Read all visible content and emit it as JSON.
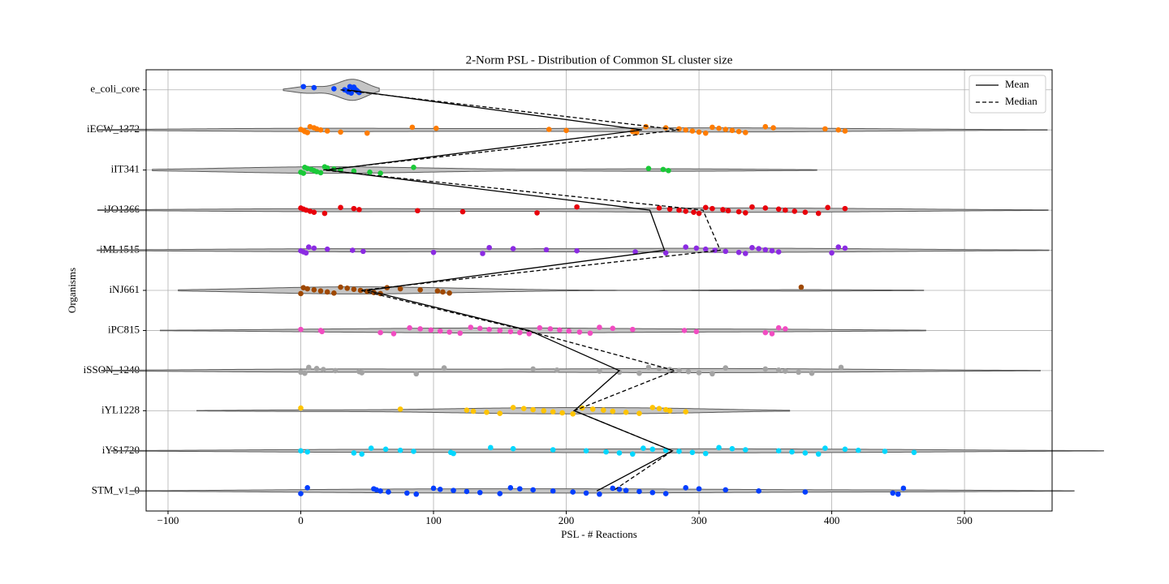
{
  "chart_data": {
    "type": "violin",
    "title": "2-Norm PSL - Distribution of Common SL cluster size",
    "xlabel": "PSL - # Reactions",
    "ylabel": "Organisms",
    "xlim": [
      -116.5,
      566
    ],
    "xticks": [
      {
        "value": -100,
        "label": "−100"
      },
      0,
      100,
      200,
      300,
      400,
      500
    ],
    "grid": true,
    "legend": "upper right",
    "series": [
      {
        "name": "e_coli_core",
        "color": "#023eff",
        "values": [
          2,
          10,
          25,
          33,
          35,
          36,
          38,
          40,
          40,
          41,
          42,
          43,
          44,
          37,
          39
        ]
      },
      {
        "name": "iECW_1372",
        "color": "#ff7c00",
        "values": [
          0,
          2,
          3,
          5,
          7,
          10,
          12,
          15,
          20,
          30,
          50,
          84,
          102,
          187,
          200,
          250,
          253,
          260,
          275,
          285,
          290,
          295,
          300,
          305,
          310,
          315,
          320,
          325,
          330,
          335,
          350,
          356,
          395,
          405,
          410
        ]
      },
      {
        "name": "iIT341",
        "color": "#1ac938",
        "values": [
          0,
          2,
          3,
          5,
          8,
          10,
          12,
          15,
          18,
          20,
          25,
          30,
          40,
          52,
          60,
          85,
          262,
          273,
          277
        ]
      },
      {
        "name": "iJO1366",
        "color": "#e8000b",
        "values": [
          0,
          2,
          4,
          7,
          10,
          18,
          30,
          40,
          44,
          88,
          122,
          178,
          208,
          270,
          278,
          285,
          290,
          296,
          300,
          305,
          310,
          318,
          322,
          330,
          335,
          340,
          350,
          360,
          365,
          372,
          380,
          390,
          397,
          410
        ]
      },
      {
        "name": "iML1515",
        "color": "#8b2be2",
        "values": [
          0,
          2,
          4,
          6,
          10,
          20,
          39,
          47,
          100,
          137,
          142,
          160,
          185,
          208,
          252,
          275,
          290,
          298,
          305,
          312,
          320,
          330,
          335,
          340,
          345,
          350,
          355,
          360,
          400,
          405,
          410
        ]
      },
      {
        "name": "iNJ661",
        "color": "#9f4800",
        "values": [
          0,
          2,
          5,
          10,
          15,
          20,
          25,
          30,
          35,
          40,
          45,
          50,
          55,
          60,
          65,
          75,
          90,
          103,
          107,
          112,
          377
        ]
      },
      {
        "name": "iPC815",
        "color": "#f14cc1",
        "values": [
          0,
          15,
          16,
          60,
          70,
          82,
          90,
          98,
          105,
          112,
          120,
          128,
          135,
          142,
          150,
          158,
          165,
          172,
          180,
          188,
          195,
          202,
          210,
          218,
          225,
          235,
          250,
          289,
          298,
          350,
          355,
          360,
          365
        ]
      },
      {
        "name": "iSSON_1240",
        "color": "#a3a3a3",
        "values": [
          0,
          3,
          6,
          12,
          17,
          26,
          44,
          46,
          87,
          108,
          175,
          193,
          225,
          240,
          255,
          262,
          270,
          278,
          285,
          292,
          300,
          310,
          320,
          350,
          360,
          365,
          375,
          385,
          407
        ]
      },
      {
        "name": "iYL1228",
        "color": "#ffc400",
        "values": [
          0,
          75,
          125,
          130,
          140,
          150,
          160,
          168,
          175,
          183,
          190,
          197,
          205,
          212,
          220,
          228,
          235,
          245,
          255,
          265,
          270,
          275,
          278,
          290
        ]
      },
      {
        "name": "iYS1720",
        "color": "#00d7ff",
        "values": [
          0,
          5,
          40,
          46,
          53,
          64,
          75,
          85,
          113,
          115,
          143,
          160,
          190,
          215,
          230,
          240,
          250,
          258,
          265,
          275,
          285,
          295,
          305,
          315,
          325,
          335,
          360,
          370,
          380,
          390,
          395,
          410,
          420,
          440,
          462
        ]
      },
      {
        "name": "STM_v1_0",
        "color": "#023eff",
        "values": [
          0,
          5,
          55,
          57,
          60,
          66,
          80,
          87,
          100,
          105,
          115,
          125,
          135,
          150,
          158,
          165,
          175,
          190,
          205,
          215,
          225,
          235,
          240,
          245,
          255,
          265,
          275,
          290,
          300,
          320,
          345,
          380,
          446,
          450,
          454
        ]
      }
    ],
    "lines": [
      {
        "name": "Mean",
        "dash": "solid",
        "color": "#000000",
        "values": [
          35,
          257,
          20,
          263,
          274,
          50,
          172,
          240,
          206,
          280,
          223
        ]
      },
      {
        "name": "Median",
        "dash": "dashed",
        "color": "#000000",
        "values": [
          30,
          285,
          17,
          303,
          316,
          45,
          170,
          282,
          206,
          280,
          235
        ]
      }
    ]
  }
}
